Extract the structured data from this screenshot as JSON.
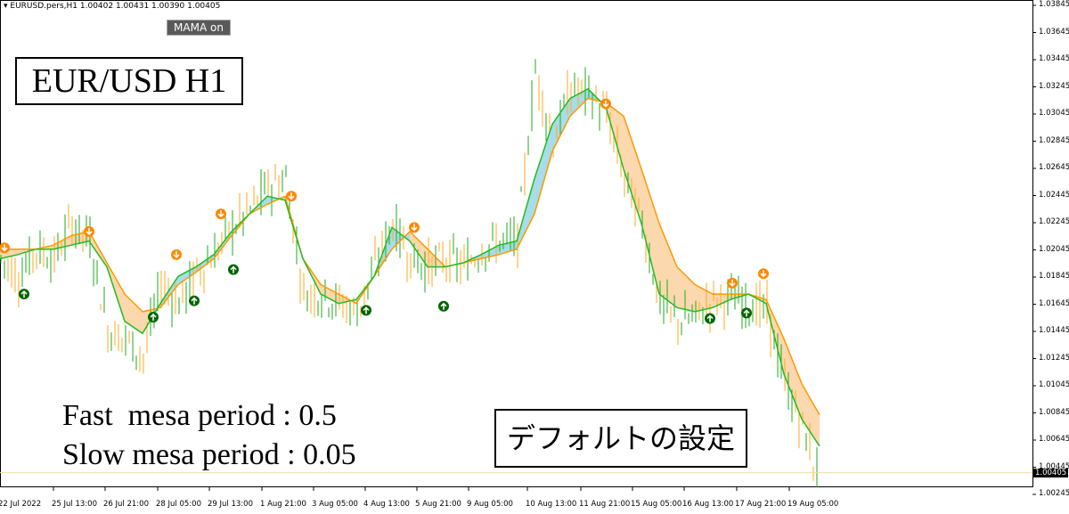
{
  "header": {
    "symbol_info": "EURUSD.pers,H1  1.00402 1.00431 1.00390 1.00405",
    "indicator_button": "MAMA on"
  },
  "annotations": {
    "title": "EUR/USD H1",
    "fast": "Fast  mesa period : 0.5",
    "slow": "Slow mesa period : 0.05",
    "settings": "デフォルトの設定"
  },
  "colors": {
    "up_bar": "#22aa22",
    "down_bar": "#ffaa22",
    "mama_line": "#22bb22",
    "fama_line": "#ff9900",
    "fill_mama_above": "#a8dce8",
    "fill_fama_above": "#fcd8ae",
    "buy_signal": "#006600",
    "sell_signal": "#ff8800",
    "price_line": "#f0e0a0"
  },
  "chart_data": {
    "type": "line",
    "title": "",
    "ylim": [
      1.00245,
      1.03845
    ],
    "y_ticks": [
      "1.03845",
      "1.03645",
      "1.03445",
      "1.03245",
      "1.03045",
      "1.02845",
      "1.02645",
      "1.02445",
      "1.02245",
      "1.02045",
      "1.01845",
      "1.01645",
      "1.01445",
      "1.01245",
      "1.01045",
      "1.00845",
      "1.00645",
      "1.00445",
      "1.00245"
    ],
    "x_ticks": [
      "22 Jul 2022",
      "25 Jul 13:00",
      "26 Jul 21:00",
      "28 Jul 05:00",
      "29 Jul 13:00",
      "1 Aug 21:00",
      "3 Aug 05:00",
      "4 Aug 13:00",
      "5 Aug 21:00",
      "9 Aug 05:00",
      "10 Aug 13:00",
      "11 Aug 21:00",
      "15 Aug 05:00",
      "16 Aug 13:00",
      "17 Aug 21:00",
      "19 Aug 05:00"
    ],
    "current_price": "1.00405",
    "series": [
      {
        "name": "price",
        "values": [
          1.0198,
          1.0185,
          1.0205,
          1.0198,
          1.0224,
          1.0211,
          1.0146,
          1.0139,
          1.0126,
          1.0179,
          1.0165,
          1.0188,
          1.0201,
          1.0221,
          1.0234,
          1.0251,
          1.0257,
          1.0172,
          1.0172,
          1.0165,
          1.0159,
          1.0192,
          1.0224,
          1.0198,
          1.0192,
          1.0198,
          1.0192,
          1.0205,
          1.0211,
          1.0211,
          1.0336,
          1.0284,
          1.0323,
          1.032,
          1.0303,
          1.0257,
          1.0224,
          1.0165,
          1.0152,
          1.0155,
          1.0168,
          1.0168,
          1.0165,
          1.0159,
          1.0106,
          1.0074,
          1.0034
        ]
      },
      {
        "name": "MAMA",
        "values": [
          1.0198,
          1.0201,
          1.0205,
          1.0205,
          1.0208,
          1.0211,
          1.0192,
          1.0152,
          1.0143,
          1.0165,
          1.0185,
          1.0192,
          1.0201,
          1.0218,
          1.0231,
          1.0244,
          1.0241,
          1.0198,
          1.0172,
          1.0165,
          1.0168,
          1.0185,
          1.0221,
          1.0211,
          1.0192,
          1.0192,
          1.0195,
          1.0201,
          1.0208,
          1.0211,
          1.0257,
          1.0297,
          1.0316,
          1.0323,
          1.031,
          1.0264,
          1.0224,
          1.0172,
          1.0162,
          1.0159,
          1.0162,
          1.0168,
          1.0172,
          1.0165,
          1.0113,
          1.008,
          1.006
        ]
      },
      {
        "name": "FAMA",
        "values": [
          1.0205,
          1.0205,
          1.0205,
          1.0208,
          1.0215,
          1.0218,
          1.0195,
          1.0172,
          1.0159,
          1.0162,
          1.0179,
          1.0188,
          1.0198,
          1.0215,
          1.0231,
          1.0238,
          1.0244,
          1.0198,
          1.0179,
          1.0172,
          1.0165,
          1.0185,
          1.0205,
          1.0218,
          1.0205,
          1.0192,
          1.0195,
          1.0198,
          1.0201,
          1.0205,
          1.0231,
          1.0277,
          1.0303,
          1.0316,
          1.0313,
          1.0303,
          1.0264,
          1.0224,
          1.0192,
          1.0179,
          1.0172,
          1.0172,
          1.0172,
          1.0168,
          1.0139,
          1.0106,
          1.0083
        ]
      }
    ],
    "signals": [
      {
        "type": "sell",
        "index": 0.25,
        "price": 1.0206
      },
      {
        "type": "sell",
        "index": 5,
        "price": 1.0218
      },
      {
        "type": "sell",
        "index": 9.9,
        "price": 1.0201
      },
      {
        "type": "sell",
        "index": 12.4,
        "price": 1.0231
      },
      {
        "type": "sell",
        "index": 16.35,
        "price": 1.0244
      },
      {
        "type": "sell",
        "index": 23.25,
        "price": 1.0221
      },
      {
        "type": "sell",
        "index": 34,
        "price": 1.0312
      },
      {
        "type": "sell",
        "index": 41.1,
        "price": 1.018
      },
      {
        "type": "sell",
        "index": 42.85,
        "price": 1.0187
      },
      {
        "type": "buy",
        "index": 1.35,
        "price": 1.0172
      },
      {
        "type": "buy",
        "index": 8.6,
        "price": 1.0155
      },
      {
        "type": "buy",
        "index": 10.9,
        "price": 1.0167
      },
      {
        "type": "buy",
        "index": 13.1,
        "price": 1.019
      },
      {
        "type": "buy",
        "index": 20.55,
        "price": 1.016
      },
      {
        "type": "buy",
        "index": 24.9,
        "price": 1.0163
      },
      {
        "type": "buy",
        "index": 39.85,
        "price": 1.0154
      },
      {
        "type": "buy",
        "index": 41.9,
        "price": 1.0158
      }
    ]
  }
}
